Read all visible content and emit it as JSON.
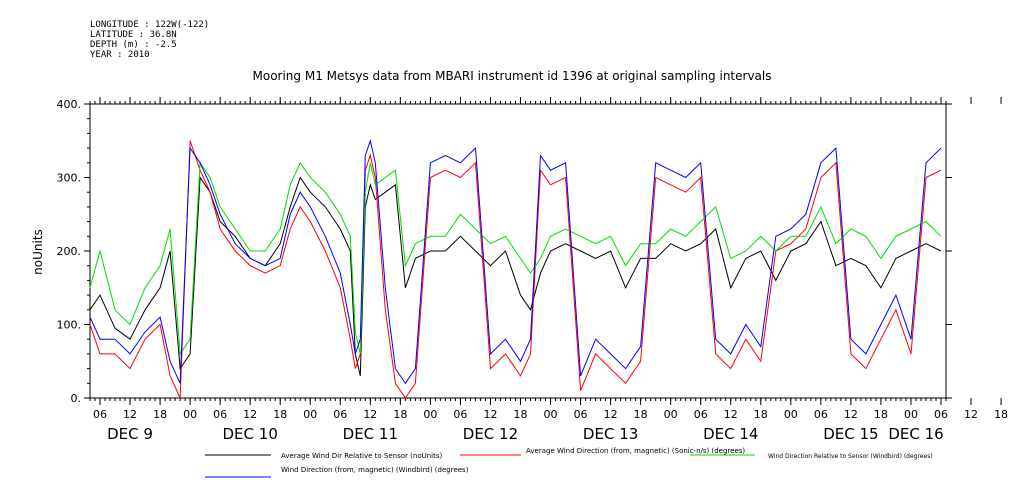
{
  "metadata": {
    "longitude": "LONGITUDE : 122W(-122)",
    "latitude": "LATITUDE : 36.8N",
    "depth": "DEPTH (m) : -2.5",
    "year": "YEAR : 2010"
  },
  "colors": {
    "avg_dir_rel_sensor": "#000000",
    "avg_wind_dir_sonic": "#ff0000",
    "wind_dir_rel_windbird": "#00dd00",
    "wind_dir_mag_windbird": "#0000ff"
  },
  "chart_data": {
    "type": "line",
    "title": "Mooring M1 Metsys data from MBARI instrument id 1396 at original sampling intervals",
    "ylabel": "noUnits",
    "ylim": [
      0,
      400
    ],
    "y_ticks": [
      "0.",
      "100.",
      "200.",
      "300.",
      "400."
    ],
    "x_hour_ticks": [
      "06",
      "12",
      "18",
      "00",
      "06",
      "12",
      "18",
      "00",
      "06",
      "12",
      "18",
      "00",
      "06",
      "12",
      "18",
      "00",
      "06",
      "12",
      "18",
      "00",
      "06",
      "12",
      "18",
      "00",
      "06",
      "12",
      "18",
      "00",
      "06",
      "12",
      "18",
      "00",
      "06"
    ],
    "x_day_labels": [
      "DEC 9",
      "DEC 10",
      "DEC 11",
      "DEC 12",
      "DEC 13",
      "DEC 14",
      "DEC 15",
      "DEC 16"
    ],
    "legend": [
      {
        "label": "Average Wind Dir Relative to Sensor (noUnits)",
        "color_key": "avg_dir_rel_sensor"
      },
      {
        "label": "Average Wind Direction (from, magnetic) (Sonic-n/s) (degrees)",
        "color_key": "avg_wind_dir_sonic"
      },
      {
        "label": "Wind Direction Relative to Sensor (Windbird) (degrees)",
        "color_key": "wind_dir_rel_windbird"
      },
      {
        "label": "Wind Direction (from, magnetic) (Windbird) (degrees)",
        "color_key": "wind_dir_mag_windbird"
      }
    ],
    "series": [
      {
        "name": "Average Wind Dir Relative to Sensor (noUnits)",
        "key": "avg_dir_rel_sensor",
        "x": [
          "Dec 9 04:00",
          "Dec 9 06:00",
          "Dec 9 09:00",
          "Dec 9 12:00",
          "Dec 9 15:00",
          "Dec 9 18:00",
          "Dec 9 20:00",
          "Dec 9 22:00",
          "Dec 10 00:00",
          "Dec 10 02:00",
          "Dec 10 04:00",
          "Dec 10 06:00",
          "Dec 10 09:00",
          "Dec 10 12:00",
          "Dec 10 15:00",
          "Dec 10 18:00",
          "Dec 10 20:00",
          "Dec 10 22:00",
          "Dec 11 00:00",
          "Dec 11 03:00",
          "Dec 11 06:00",
          "Dec 11 08:00",
          "Dec 11 09:00",
          "Dec 11 10:00",
          "Dec 11 11:00",
          "Dec 11 12:00",
          "Dec 11 13:00",
          "Dec 11 15:00",
          "Dec 11 17:00",
          "Dec 11 19:00",
          "Dec 11 21:00",
          "Dec 12 00:00",
          "Dec 12 03:00",
          "Dec 12 06:00",
          "Dec 12 09:00",
          "Dec 12 12:00",
          "Dec 12 15:00",
          "Dec 12 18:00",
          "Dec 12 20:00",
          "Dec 12 22:00",
          "Dec 13 00:00",
          "Dec 13 03:00",
          "Dec 13 06:00",
          "Dec 13 09:00",
          "Dec 13 12:00",
          "Dec 13 15:00",
          "Dec 13 18:00",
          "Dec 13 21:00",
          "Dec 14 00:00",
          "Dec 14 03:00",
          "Dec 14 06:00",
          "Dec 14 09:00",
          "Dec 14 12:00",
          "Dec 14 15:00",
          "Dec 14 18:00",
          "Dec 14 21:00",
          "Dec 15 00:00",
          "Dec 15 03:00",
          "Dec 15 06:00",
          "Dec 15 09:00",
          "Dec 15 12:00",
          "Dec 15 15:00",
          "Dec 15 18:00",
          "Dec 15 21:00",
          "Dec 16 00:00",
          "Dec 16 03:00",
          "Dec 16 06:00"
        ],
        "y": [
          120,
          140,
          95,
          80,
          120,
          150,
          200,
          40,
          60,
          300,
          280,
          240,
          220,
          190,
          180,
          210,
          260,
          300,
          280,
          260,
          230,
          200,
          60,
          30,
          260,
          290,
          270,
          280,
          290,
          150,
          190,
          200,
          200,
          220,
          200,
          180,
          200,
          140,
          120,
          170,
          200,
          210,
          200,
          190,
          200,
          150,
          190,
          190,
          210,
          200,
          210,
          230,
          150,
          190,
          200,
          160,
          200,
          210,
          240,
          180,
          190,
          180,
          150,
          190,
          200,
          210,
          200
        ]
      },
      {
        "name": "Average Wind Direction (from, magnetic) (Sonic-n/s) (degrees)",
        "key": "avg_wind_dir_sonic",
        "x": [
          "Dec 9 04:00",
          "Dec 9 06:00",
          "Dec 9 09:00",
          "Dec 9 12:00",
          "Dec 9 15:00",
          "Dec 9 18:00",
          "Dec 9 20:00",
          "Dec 9 22:00",
          "Dec 10 00:00",
          "Dec 10 02:00",
          "Dec 10 04:00",
          "Dec 10 06:00",
          "Dec 10 09:00",
          "Dec 10 12:00",
          "Dec 10 15:00",
          "Dec 10 18:00",
          "Dec 10 20:00",
          "Dec 10 22:00",
          "Dec 11 00:00",
          "Dec 11 03:00",
          "Dec 11 06:00",
          "Dec 11 08:00",
          "Dec 11 09:00",
          "Dec 11 10:00",
          "Dec 11 11:00",
          "Dec 11 12:00",
          "Dec 11 13:00",
          "Dec 11 15:00",
          "Dec 11 17:00",
          "Dec 11 19:00",
          "Dec 11 21:00",
          "Dec 12 00:00",
          "Dec 12 03:00",
          "Dec 12 06:00",
          "Dec 12 09:00",
          "Dec 12 12:00",
          "Dec 12 15:00",
          "Dec 12 18:00",
          "Dec 12 20:00",
          "Dec 12 22:00",
          "Dec 13 00:00",
          "Dec 13 03:00",
          "Dec 13 06:00",
          "Dec 13 09:00",
          "Dec 13 12:00",
          "Dec 13 15:00",
          "Dec 13 18:00",
          "Dec 13 21:00",
          "Dec 14 00:00",
          "Dec 14 03:00",
          "Dec 14 06:00",
          "Dec 14 09:00",
          "Dec 14 12:00",
          "Dec 14 15:00",
          "Dec 14 18:00",
          "Dec 14 21:00",
          "Dec 15 00:00",
          "Dec 15 03:00",
          "Dec 15 06:00",
          "Dec 15 09:00",
          "Dec 15 12:00",
          "Dec 15 15:00",
          "Dec 15 18:00",
          "Dec 15 21:00",
          "Dec 16 00:00",
          "Dec 16 03:00",
          "Dec 16 06:00"
        ],
        "y": [
          100,
          60,
          60,
          40,
          80,
          100,
          30,
          0,
          350,
          310,
          280,
          230,
          200,
          180,
          170,
          180,
          230,
          260,
          240,
          200,
          150,
          80,
          40,
          60,
          310,
          330,
          300,
          120,
          20,
          0,
          20,
          300,
          310,
          300,
          320,
          40,
          60,
          30,
          60,
          310,
          290,
          300,
          10,
          60,
          40,
          20,
          50,
          300,
          290,
          280,
          300,
          60,
          40,
          80,
          50,
          200,
          210,
          230,
          300,
          320,
          60,
          40,
          80,
          120,
          60,
          300,
          310
        ]
      },
      {
        "name": "Wind Direction Relative to Sensor (Windbird) (degrees)",
        "key": "wind_dir_rel_windbird",
        "x": [
          "Dec 9 04:00",
          "Dec 9 06:00",
          "Dec 9 09:00",
          "Dec 9 12:00",
          "Dec 9 15:00",
          "Dec 9 18:00",
          "Dec 9 20:00",
          "Dec 9 22:00",
          "Dec 10 00:00",
          "Dec 10 02:00",
          "Dec 10 04:00",
          "Dec 10 06:00",
          "Dec 10 09:00",
          "Dec 10 12:00",
          "Dec 10 15:00",
          "Dec 10 18:00",
          "Dec 10 20:00",
          "Dec 10 22:00",
          "Dec 11 00:00",
          "Dec 11 03:00",
          "Dec 11 06:00",
          "Dec 11 08:00",
          "Dec 11 09:00",
          "Dec 11 10:00",
          "Dec 11 11:00",
          "Dec 11 12:00",
          "Dec 11 13:00",
          "Dec 11 15:00",
          "Dec 11 17:00",
          "Dec 11 19:00",
          "Dec 11 21:00",
          "Dec 12 00:00",
          "Dec 12 03:00",
          "Dec 12 06:00",
          "Dec 12 09:00",
          "Dec 12 12:00",
          "Dec 12 15:00",
          "Dec 12 18:00",
          "Dec 12 20:00",
          "Dec 12 22:00",
          "Dec 13 00:00",
          "Dec 13 03:00",
          "Dec 13 06:00",
          "Dec 13 09:00",
          "Dec 13 12:00",
          "Dec 13 15:00",
          "Dec 13 18:00",
          "Dec 13 21:00",
          "Dec 14 00:00",
          "Dec 14 03:00",
          "Dec 14 06:00",
          "Dec 14 09:00",
          "Dec 14 12:00",
          "Dec 14 15:00",
          "Dec 14 18:00",
          "Dec 14 21:00",
          "Dec 15 00:00",
          "Dec 15 03:00",
          "Dec 15 06:00",
          "Dec 15 09:00",
          "Dec 15 12:00",
          "Dec 15 15:00",
          "Dec 15 18:00",
          "Dec 15 21:00",
          "Dec 16 00:00",
          "Dec 16 03:00",
          "Dec 16 06:00"
        ],
        "y": [
          150,
          200,
          120,
          100,
          150,
          180,
          230,
          60,
          80,
          320,
          300,
          260,
          230,
          200,
          200,
          230,
          290,
          320,
          300,
          280,
          250,
          220,
          90,
          60,
          280,
          320,
          290,
          300,
          310,
          180,
          210,
          220,
          220,
          250,
          230,
          210,
          220,
          190,
          170,
          190,
          220,
          230,
          220,
          210,
          220,
          180,
          210,
          210,
          230,
          220,
          240,
          260,
          190,
          200,
          220,
          200,
          220,
          220,
          260,
          210,
          230,
          220,
          190,
          220,
          230,
          240,
          220
        ]
      },
      {
        "name": "Wind Direction (from, magnetic) (Windbird) (degrees)",
        "key": "wind_dir_mag_windbird",
        "x": [
          "Dec 9 04:00",
          "Dec 9 06:00",
          "Dec 9 09:00",
          "Dec 9 12:00",
          "Dec 9 15:00",
          "Dec 9 18:00",
          "Dec 9 20:00",
          "Dec 9 22:00",
          "Dec 10 00:00",
          "Dec 10 02:00",
          "Dec 10 04:00",
          "Dec 10 06:00",
          "Dec 10 09:00",
          "Dec 10 12:00",
          "Dec 10 15:00",
          "Dec 10 18:00",
          "Dec 10 20:00",
          "Dec 10 22:00",
          "Dec 11 00:00",
          "Dec 11 03:00",
          "Dec 11 06:00",
          "Dec 11 08:00",
          "Dec 11 09:00",
          "Dec 11 10:00",
          "Dec 11 11:00",
          "Dec 11 12:00",
          "Dec 11 13:00",
          "Dec 11 15:00",
          "Dec 11 17:00",
          "Dec 11 19:00",
          "Dec 11 21:00",
          "Dec 12 00:00",
          "Dec 12 03:00",
          "Dec 12 06:00",
          "Dec 12 09:00",
          "Dec 12 12:00",
          "Dec 12 15:00",
          "Dec 12 18:00",
          "Dec 12 20:00",
          "Dec 12 22:00",
          "Dec 13 00:00",
          "Dec 13 03:00",
          "Dec 13 06:00",
          "Dec 13 09:00",
          "Dec 13 12:00",
          "Dec 13 15:00",
          "Dec 13 18:00",
          "Dec 13 21:00",
          "Dec 14 00:00",
          "Dec 14 03:00",
          "Dec 14 06:00",
          "Dec 14 09:00",
          "Dec 14 12:00",
          "Dec 14 15:00",
          "Dec 14 18:00",
          "Dec 14 21:00",
          "Dec 15 00:00",
          "Dec 15 03:00",
          "Dec 15 06:00",
          "Dec 15 09:00",
          "Dec 15 12:00",
          "Dec 15 15:00",
          "Dec 15 18:00",
          "Dec 15 21:00",
          "Dec 16 00:00",
          "Dec 16 03:00",
          "Dec 16 06:00"
        ],
        "y": [
          110,
          80,
          80,
          60,
          90,
          110,
          50,
          20,
          340,
          320,
          290,
          250,
          210,
          190,
          180,
          190,
          250,
          280,
          260,
          220,
          170,
          100,
          60,
          80,
          330,
          350,
          320,
          150,
          40,
          20,
          40,
          320,
          330,
          320,
          340,
          60,
          80,
          50,
          80,
          330,
          310,
          320,
          30,
          80,
          60,
          40,
          70,
          320,
          310,
          300,
          320,
          80,
          60,
          100,
          70,
          220,
          230,
          250,
          320,
          340,
          80,
          60,
          100,
          140,
          80,
          320,
          340
        ]
      }
    ]
  }
}
